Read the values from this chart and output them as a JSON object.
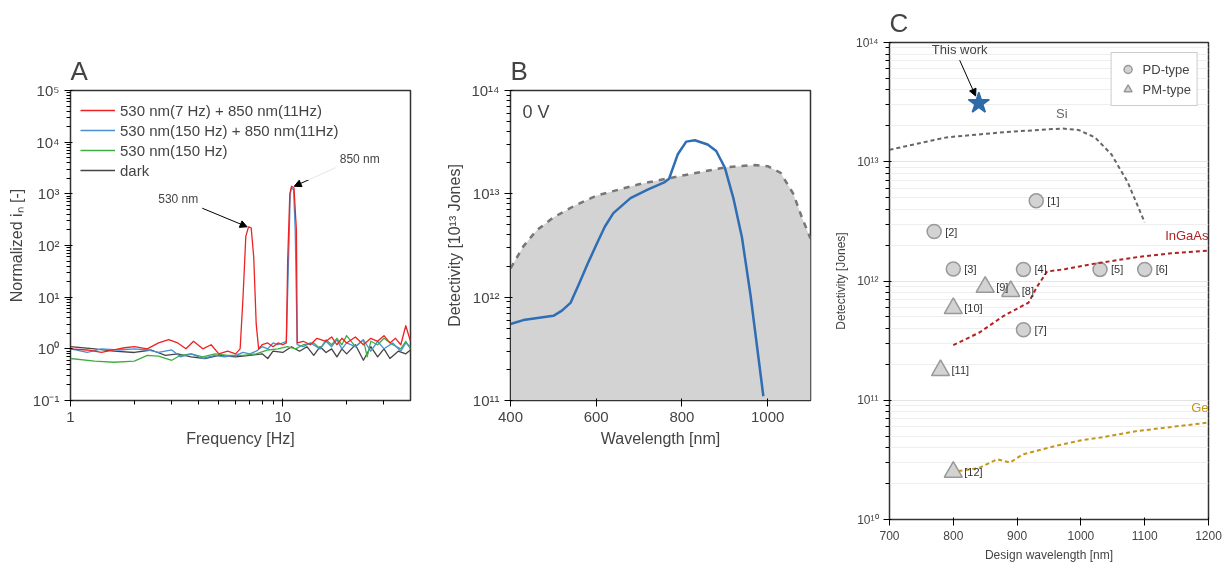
{
  "chart_data": [
    {
      "type": "line",
      "title": "A",
      "xlabel": "Frequency [Hz]",
      "ylabel": "Normalized iₙ [-]",
      "log": "xy",
      "xlim": [
        1,
        40
      ],
      "xticks": [
        1,
        10
      ],
      "ylim": [
        0.1,
        100000
      ],
      "yticks": [
        {
          "value": 0.1,
          "label": "10⁻¹"
        },
        {
          "value": 1,
          "label": "10⁰"
        },
        {
          "value": 10,
          "label": "10¹"
        },
        {
          "value": 100,
          "label": "10²"
        },
        {
          "value": 1000,
          "label": "10³"
        },
        {
          "value": 10000,
          "label": "10⁴"
        },
        {
          "value": 100000,
          "label": "10⁵"
        }
      ],
      "legend": "top left",
      "annotations": [
        {
          "text": "530 nm",
          "x": 7,
          "y": 230
        },
        {
          "text": "850 nm",
          "x": 11,
          "y": 1400
        }
      ],
      "series": [
        {
          "name": "530 nm(7 Hz) + 850 nm(11Hz)",
          "color": "#ee2222",
          "x": [
            1,
            1.2,
            1.4,
            1.6,
            1.8,
            2.0,
            2.3,
            2.6,
            2.9,
            3.2,
            3.5,
            3.8,
            4.2,
            4.6,
            5.0,
            5.5,
            6.0,
            6.3,
            6.5,
            6.7,
            6.9,
            7.1,
            7.3,
            7.5,
            7.7,
            8.0,
            8.5,
            9.0,
            9.5,
            10.0,
            10.4,
            10.55,
            10.8,
            11.0,
            11.3,
            11.6,
            11.7,
            12.5,
            13.5,
            14.5,
            16,
            17,
            18,
            19,
            20,
            22,
            24,
            26,
            28,
            30,
            32,
            34,
            36,
            38,
            40
          ],
          "values": [
            1.0,
            0.95,
            0.85,
            0.95,
            1.05,
            1.1,
            1.0,
            1.3,
            1.5,
            1.3,
            1.0,
            1.4,
            1.0,
            1.2,
            0.8,
            0.9,
            0.8,
            1.0,
            10,
            150,
            230,
            220,
            60,
            3,
            1.0,
            1.2,
            1.3,
            1.1,
            1.3,
            1.2,
            1.3,
            50,
            1000,
            1400,
            1300,
            200,
            1.3,
            1.4,
            1.2,
            1.6,
            1.4,
            1.7,
            1.2,
            1.6,
            1.3,
            1.7,
            1.2,
            1.6,
            1.4,
            1.8,
            1.3,
            1.6,
            1.2,
            2.8,
            1.4
          ]
        },
        {
          "name": "530 nm(150 Hz) + 850 nm(11Hz)",
          "color": "#4a90d0",
          "x": [
            1,
            1.2,
            1.4,
            1.7,
            2.0,
            2.3,
            2.6,
            3.0,
            3.3,
            3.7,
            4.2,
            4.8,
            5.3,
            6.0,
            6.5,
            7,
            7.5,
            8,
            8.5,
            9,
            9.5,
            10,
            10.4,
            10.65,
            10.85,
            11,
            11.25,
            11.45,
            11.7,
            12.5,
            13.5,
            15,
            16,
            17,
            18,
            19,
            20,
            22,
            24,
            26,
            28,
            30,
            33,
            36,
            38,
            40
          ],
          "values": [
            1.0,
            0.85,
            1.0,
            0.95,
            1.0,
            0.95,
            0.85,
            0.95,
            0.7,
            0.8,
            0.65,
            0.75,
            0.7,
            0.75,
            0.85,
            0.8,
            0.9,
            1.1,
            1.0,
            1.3,
            1.2,
            1.3,
            1.4,
            50,
            1000,
            1300,
            1200,
            200,
            1.2,
            1.1,
            1.3,
            1.0,
            1.4,
            1.1,
            1.5,
            1.0,
            1.3,
            1.1,
            1.5,
            0.9,
            1.4,
            1.0,
            1.3,
            0.9,
            1.3,
            1.1
          ]
        },
        {
          "name": "530 nm(150 Hz)",
          "color": "#3fae3f",
          "x": [
            1,
            1.3,
            1.6,
            2.0,
            2.3,
            2.6,
            3.0,
            3.3,
            3.7,
            4.2,
            4.8,
            5.5,
            6.5,
            7.5,
            8.5,
            9.5,
            10.5,
            11.5,
            12.5,
            14,
            15,
            16,
            17,
            18,
            19,
            20,
            22,
            24,
            25,
            26,
            28,
            30,
            33,
            36,
            38,
            40
          ],
          "values": [
            0.65,
            0.58,
            0.55,
            0.58,
            0.75,
            0.72,
            0.6,
            0.75,
            0.8,
            0.7,
            0.8,
            0.75,
            0.75,
            0.8,
            0.95,
            1.0,
            1.1,
            1.0,
            1.2,
            1.3,
            1.0,
            1.5,
            1.2,
            1.6,
            1.2,
            1.8,
            1.1,
            1.5,
            0.7,
            1.4,
            1.2,
            1.6,
            1.2,
            1.0,
            1.4,
            1.0
          ]
        },
        {
          "name": "dark",
          "color": "#444444",
          "x": [
            1,
            1.3,
            1.6,
            2.0,
            2.4,
            2.8,
            3.2,
            3.7,
            4.3,
            5,
            6,
            7,
            8,
            8.5,
            9,
            10,
            11,
            12,
            13,
            14,
            15,
            16,
            17,
            18,
            19,
            20,
            22,
            24,
            26,
            28,
            30,
            32,
            35,
            38,
            40
          ],
          "values": [
            1.1,
            1.0,
            0.9,
            0.85,
            0.95,
            0.75,
            0.8,
            0.7,
            0.65,
            0.75,
            0.7,
            0.75,
            0.8,
            0.65,
            0.9,
            0.85,
            1.1,
            0.9,
            1.1,
            0.75,
            1.1,
            0.85,
            1.0,
            0.7,
            1.0,
            0.8,
            1.2,
            0.6,
            1.1,
            0.7,
            1.0,
            0.65,
            0.9,
            0.8,
            0.95
          ]
        }
      ]
    },
    {
      "type": "line",
      "title": "B",
      "xlabel": "Wavelength [nm]",
      "ylabel": "Detectivity [10¹³ Jones]",
      "log": "y",
      "xlim": [
        400,
        1100
      ],
      "xticks": [
        400,
        600,
        800,
        1000
      ],
      "ylim": [
        100000000000.0,
        100000000000000.0
      ],
      "yticks": [
        {
          "value": 100000000000.0,
          "label": "10¹¹"
        },
        {
          "value": 1000000000000.0,
          "label": "10¹²"
        },
        {
          "value": 10000000000000.0,
          "label": "10¹³"
        },
        {
          "value": 100000000000000.0,
          "label": "10¹⁴"
        }
      ],
      "annotations": [
        "0 V"
      ],
      "series": [
        {
          "type": "area",
          "color": "#d3d3d3",
          "line_style": "dashed",
          "x": [
            400,
            430,
            460,
            500,
            550,
            600,
            700,
            800,
            900,
            970,
            1000,
            1030,
            1060,
            1080,
            1100
          ],
          "values": [
            1900000000000.0,
            3100000000000.0,
            4400000000000.0,
            5900000000000.0,
            7700000000000.0,
            9600000000000.0,
            12400000000000.0,
            15000000000000.0,
            18000000000000.0,
            19000000000000.0,
            18500000000000.0,
            16000000000000.0,
            10000000000000.0,
            5900000000000.0,
            3700000000000.0
          ]
        },
        {
          "color": "#2f6db5",
          "x": [
            400,
            430,
            500,
            520,
            540,
            560,
            580,
            600,
            620,
            640,
            680,
            720,
            760,
            770,
            790,
            810,
            830,
            860,
            880,
            900,
            920,
            940,
            960,
            990
          ],
          "values": [
            550000000000.0,
            600000000000.0,
            660000000000.0,
            740000000000.0,
            880000000000.0,
            1350000000000.0,
            2100000000000.0,
            3200000000000.0,
            4800000000000.0,
            6500000000000.0,
            9100000000000.0,
            11000000000000.0,
            13000000000000.0,
            14000000000000.0,
            24000000000000.0,
            32000000000000.0,
            33000000000000.0,
            30000000000000.0,
            26000000000000.0,
            18000000000000.0,
            9100000000000.0,
            3800000000000.0,
            1050000000000.0,
            110000000000.0
          ]
        }
      ]
    },
    {
      "type": "scatter",
      "title": "C",
      "xlabel": "Design wavelength [nm]",
      "ylabel": "Detectivity [Jones]",
      "log": "y",
      "xlim": [
        700,
        1200
      ],
      "xticks": [
        700,
        800,
        900,
        1000,
        1100,
        1200
      ],
      "ylim": [
        10000000000.0,
        100000000000000.0
      ],
      "yticks": [
        {
          "value": 10000000000.0,
          "label": "10¹⁰"
        },
        {
          "value": 100000000000.0,
          "label": "10¹¹"
        },
        {
          "value": 1000000000000.0,
          "label": "10¹²"
        },
        {
          "value": 10000000000000.0,
          "label": "10¹³"
        },
        {
          "value": 100000000000000.0,
          "label": "10¹⁴"
        }
      ],
      "grid": "y",
      "legend": "top right",
      "annotations": [
        {
          "text": "[1]",
          "x": 930,
          "y": 4700000000000.0
        },
        {
          "text": "[2]",
          "x": 770,
          "y": 2600000000000.0
        },
        {
          "text": "[3]",
          "x": 800,
          "y": 1260000000000.0
        },
        {
          "text": "[4]",
          "x": 910,
          "y": 1250000000000.0
        },
        {
          "text": "[5]",
          "x": 1030,
          "y": 1250000000000.0
        },
        {
          "text": "[6]",
          "x": 1100,
          "y": 1250000000000.0
        },
        {
          "text": "[7]",
          "x": 910,
          "y": 390000000000.0
        },
        {
          "text": "[8]",
          "x": 890,
          "y": 820000000000.0
        },
        {
          "text": "[9]",
          "x": 850,
          "y": 890000000000.0
        },
        {
          "text": "[10]",
          "x": 800,
          "y": 590000000000.0
        },
        {
          "text": "[11]",
          "x": 780,
          "y": 178000000000.0
        },
        {
          "text": "[12]",
          "x": 800,
          "y": 25000000000.0
        }
      ],
      "series": [
        {
          "name": "PD-type",
          "marker": "circle",
          "color": "#d3d3d3",
          "x": [
            930,
            770,
            800,
            910,
            1030,
            1100,
            910
          ],
          "values": [
            4700000000000.0,
            2600000000000.0,
            1260000000000.0,
            1250000000000.0,
            1250000000000.0,
            1250000000000.0,
            390000000000.0
          ]
        },
        {
          "name": "PM-type",
          "marker": "triangle",
          "color": "#d3d3d3",
          "x": [
            890,
            850,
            800,
            780,
            800
          ],
          "values": [
            820000000000.0,
            890000000000.0,
            590000000000.0,
            178000000000.0,
            25000000000.0
          ]
        },
        {
          "type": "scatter",
          "name": "This work",
          "marker": "star",
          "color": "#2e6aa8",
          "x": [
            840
          ],
          "values": [
            31000000000000.0
          ]
        },
        {
          "type": "line",
          "name": "Si",
          "line_style": "dashed",
          "color": "#666666",
          "x": [
            700,
            789,
            879,
            970,
            996,
            1022,
            1048,
            1073,
            1100
          ],
          "values": [
            12600000000000.0,
            16000000000000.0,
            17700000000000.0,
            19000000000000.0,
            18500000000000.0,
            16000000000000.0,
            11500000000000.0,
            6800000000000.0,
            3100000000000.0
          ]
        },
        {
          "type": "line",
          "name": "InGaAs",
          "line_style": "dashed",
          "color": "#b22222",
          "x": [
            800,
            841,
            879,
            918,
            931,
            947,
            976,
            1015,
            1048,
            1093,
            1138,
            1200
          ],
          "values": [
            290000000000.0,
            370000000000.0,
            510000000000.0,
            660000000000.0,
            890000000000.0,
            1200000000000.0,
            1260000000000.0,
            1380000000000.0,
            1470000000000.0,
            1600000000000.0,
            1700000000000.0,
            1800000000000.0
          ]
        },
        {
          "type": "line",
          "name": "Ge",
          "line_style": "dashed",
          "color": "#c4961a",
          "x": [
            808,
            840,
            869,
            889,
            908,
            957,
            999,
            1035,
            1086,
            1200
          ],
          "values": [
            25500000000.0,
            27000000000.0,
            32000000000.0,
            30000000000.0,
            35000000000.0,
            41000000000.0,
            46000000000.0,
            49000000000.0,
            55000000000.0,
            65000000000.0
          ]
        }
      ]
    }
  ]
}
